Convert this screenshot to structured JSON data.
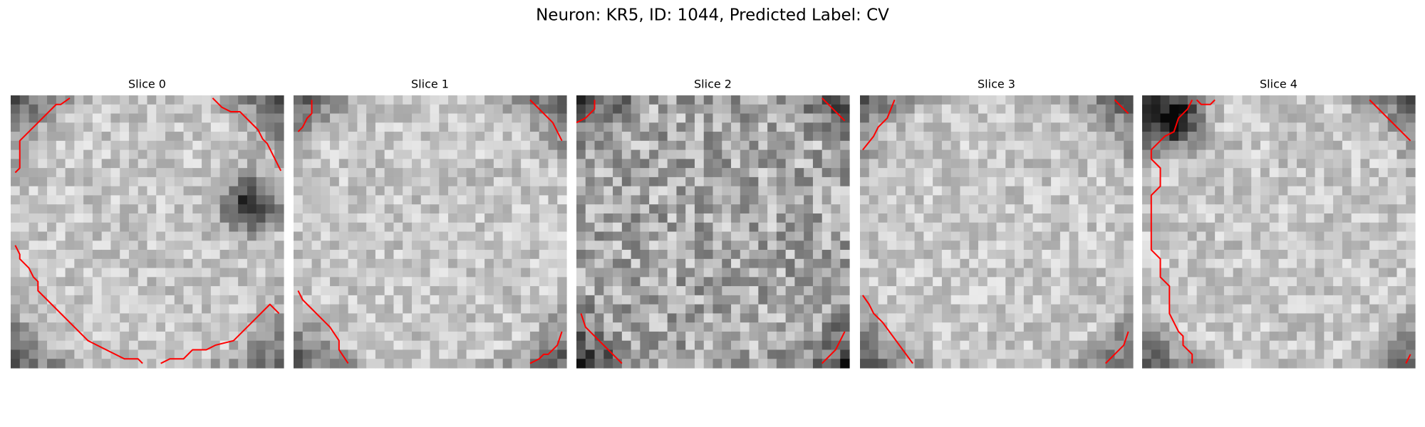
{
  "header": {
    "title": "Neuron: KR5, ID: 1044, Predicted Label: CV"
  },
  "panels": [
    {
      "title": "Slice 0"
    },
    {
      "title": "Slice 1"
    },
    {
      "title": "Slice 2"
    },
    {
      "title": "Slice 3"
    },
    {
      "title": "Slice 4"
    }
  ]
}
